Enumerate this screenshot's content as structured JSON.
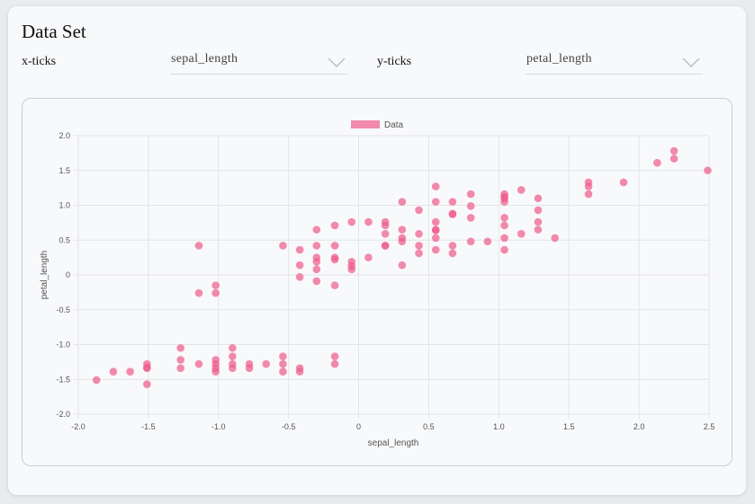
{
  "page": {
    "title": "Data Set",
    "x_control": {
      "label": "x-ticks",
      "value": "sepal_length"
    },
    "y_control": {
      "label": "y-ticks",
      "value": "petal_length"
    }
  },
  "colors": {
    "point": "#ee5d8e",
    "grid": "#e3e4e6",
    "axis_text": "#555555"
  },
  "chart_data": {
    "type": "scatter",
    "title": "",
    "xlabel": "sepal_length",
    "ylabel": "petal_length",
    "xlim": [
      -2.0,
      2.5
    ],
    "ylim": [
      -2.0,
      2.0
    ],
    "xticks": [
      "-2.0",
      "-1.5",
      "-1.0",
      "-0.5",
      "0",
      "0.5",
      "1.0",
      "1.5",
      "2.0",
      "2.5"
    ],
    "yticks": [
      "2.0",
      "1.5",
      "1.0",
      "0.5",
      "0",
      "-0.5",
      "-1.0",
      "-1.5",
      "-2.0"
    ],
    "grid": true,
    "legend": "top-center",
    "series": [
      {
        "name": "Data",
        "points": [
          [
            -1.87,
            -1.51
          ],
          [
            -1.75,
            -1.39
          ],
          [
            -1.63,
            -1.39
          ],
          [
            -1.51,
            -1.28
          ],
          [
            -1.51,
            -1.33
          ],
          [
            -1.51,
            -1.34
          ],
          [
            -1.51,
            -1.57
          ],
          [
            -1.27,
            -1.05
          ],
          [
            -1.27,
            -1.22
          ],
          [
            -1.27,
            -1.34
          ],
          [
            -1.14,
            -1.28
          ],
          [
            -1.14,
            0.42
          ],
          [
            -1.14,
            -0.26
          ],
          [
            -1.02,
            -1.22
          ],
          [
            -1.02,
            -1.28
          ],
          [
            -1.02,
            -1.34
          ],
          [
            -1.02,
            -1.39
          ],
          [
            -1.02,
            -0.15
          ],
          [
            -1.02,
            -0.26
          ],
          [
            -0.9,
            -1.05
          ],
          [
            -0.9,
            -1.17
          ],
          [
            -0.9,
            -1.28
          ],
          [
            -0.9,
            -1.34
          ],
          [
            -0.78,
            -1.28
          ],
          [
            -0.78,
            -1.34
          ],
          [
            -0.66,
            -1.28
          ],
          [
            -0.54,
            -1.17
          ],
          [
            -0.54,
            -1.28
          ],
          [
            -0.54,
            -1.39
          ],
          [
            -0.54,
            0.42
          ],
          [
            -0.42,
            -1.34
          ],
          [
            -0.42,
            -1.39
          ],
          [
            -0.42,
            0.36
          ],
          [
            -0.42,
            0.14
          ],
          [
            -0.42,
            -0.03
          ],
          [
            -0.3,
            0.65
          ],
          [
            -0.3,
            0.42
          ],
          [
            -0.3,
            0.25
          ],
          [
            -0.3,
            0.19
          ],
          [
            -0.3,
            0.08
          ],
          [
            -0.3,
            -0.09
          ],
          [
            -0.17,
            0.71
          ],
          [
            -0.17,
            0.42
          ],
          [
            -0.17,
            0.25
          ],
          [
            -0.17,
            0.22
          ],
          [
            -0.17,
            -0.15
          ],
          [
            -0.17,
            -1.17
          ],
          [
            -0.17,
            -1.28
          ],
          [
            -0.05,
            0.76
          ],
          [
            -0.05,
            0.19
          ],
          [
            -0.05,
            0.13
          ],
          [
            -0.05,
            0.08
          ],
          [
            0.07,
            0.76
          ],
          [
            0.07,
            0.25
          ],
          [
            0.19,
            0.76
          ],
          [
            0.19,
            0.71
          ],
          [
            0.19,
            0.59
          ],
          [
            0.19,
            0.42
          ],
          [
            0.19,
            0.42
          ],
          [
            0.31,
            1.05
          ],
          [
            0.31,
            0.65
          ],
          [
            0.31,
            0.53
          ],
          [
            0.31,
            0.48
          ],
          [
            0.31,
            0.14
          ],
          [
            0.43,
            0.93
          ],
          [
            0.43,
            0.59
          ],
          [
            0.43,
            0.42
          ],
          [
            0.43,
            0.31
          ],
          [
            0.55,
            1.27
          ],
          [
            0.55,
            1.05
          ],
          [
            0.55,
            0.76
          ],
          [
            0.55,
            0.65
          ],
          [
            0.55,
            0.64
          ],
          [
            0.55,
            0.53
          ],
          [
            0.55,
            0.36
          ],
          [
            0.67,
            1.05
          ],
          [
            0.67,
            0.88
          ],
          [
            0.67,
            0.87
          ],
          [
            0.67,
            0.42
          ],
          [
            0.67,
            0.31
          ],
          [
            0.8,
            1.16
          ],
          [
            0.8,
            0.99
          ],
          [
            0.8,
            0.82
          ],
          [
            0.8,
            0.48
          ],
          [
            0.92,
            0.48
          ],
          [
            1.04,
            1.16
          ],
          [
            1.04,
            1.12
          ],
          [
            1.04,
            1.1
          ],
          [
            1.04,
            1.05
          ],
          [
            1.04,
            0.82
          ],
          [
            1.04,
            0.71
          ],
          [
            1.04,
            0.53
          ],
          [
            1.04,
            0.36
          ],
          [
            1.16,
            1.22
          ],
          [
            1.16,
            0.59
          ],
          [
            1.28,
            1.1
          ],
          [
            1.28,
            0.93
          ],
          [
            1.28,
            0.76
          ],
          [
            1.28,
            0.65
          ],
          [
            1.4,
            0.53
          ],
          [
            1.64,
            1.33
          ],
          [
            1.64,
            1.27
          ],
          [
            1.64,
            1.16
          ],
          [
            1.89,
            1.33
          ],
          [
            2.13,
            1.61
          ],
          [
            2.25,
            1.78
          ],
          [
            2.25,
            1.67
          ],
          [
            2.49,
            1.5
          ]
        ]
      }
    ]
  }
}
